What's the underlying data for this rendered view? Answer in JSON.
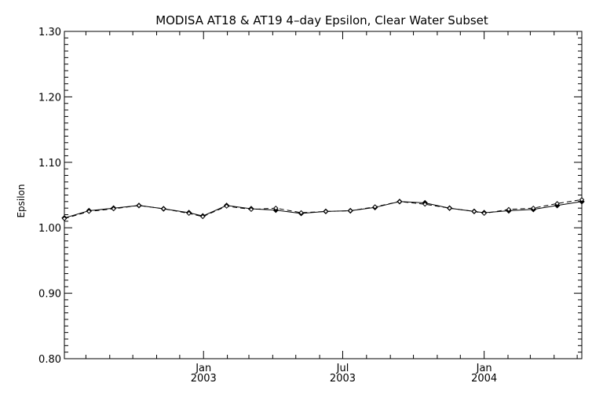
{
  "chart_data": {
    "type": "line",
    "title": "MODISA AT18 & AT19 4–day Epsilon, Clear Water Subset",
    "xlabel": "",
    "ylabel": "Epsilon",
    "ylim": [
      0.8,
      1.3
    ],
    "xlim": [
      "2002-07-04",
      "2004-05-07"
    ],
    "grid": false,
    "y_ticks": [
      {
        "value": 0.8,
        "label": "0.80"
      },
      {
        "value": 0.9,
        "label": "0.90"
      },
      {
        "value": 1.0,
        "label": "1.00"
      },
      {
        "value": 1.1,
        "label": "1.10"
      },
      {
        "value": 1.2,
        "label": "1.20"
      },
      {
        "value": 1.3,
        "label": "1.30"
      }
    ],
    "x_ticks": [
      {
        "date": "2003-01-01",
        "label": "Jan",
        "sublabel": "2003"
      },
      {
        "date": "2003-07-01",
        "label": "Jul",
        "sublabel": "2003"
      },
      {
        "date": "2004-01-01",
        "label": "Jan",
        "sublabel": "2004"
      }
    ],
    "series": [
      {
        "style": "solid",
        "marker": "diamond-filled",
        "color": "#000000",
        "points": [
          {
            "x": "2002-07-04",
            "y": 1.015
          },
          {
            "x": "2002-08-05",
            "y": 1.026
          },
          {
            "x": "2002-09-06",
            "y": 1.03
          },
          {
            "x": "2002-10-09",
            "y": 1.034
          },
          {
            "x": "2002-11-10",
            "y": 1.029
          },
          {
            "x": "2002-12-13",
            "y": 1.023
          },
          {
            "x": "2002-12-31",
            "y": 1.018
          },
          {
            "x": "2003-01-31",
            "y": 1.034
          },
          {
            "x": "2003-03-04",
            "y": 1.029
          },
          {
            "x": "2003-04-05",
            "y": 1.027
          },
          {
            "x": "2003-05-08",
            "y": 1.022
          },
          {
            "x": "2003-06-09",
            "y": 1.025
          },
          {
            "x": "2003-07-11",
            "y": 1.026
          },
          {
            "x": "2003-08-12",
            "y": 1.031
          },
          {
            "x": "2003-09-13",
            "y": 1.04
          },
          {
            "x": "2003-10-16",
            "y": 1.038
          },
          {
            "x": "2003-11-17",
            "y": 1.03
          },
          {
            "x": "2003-12-19",
            "y": 1.025
          },
          {
            "x": "2004-01-01",
            "y": 1.023
          },
          {
            "x": "2004-02-02",
            "y": 1.026
          },
          {
            "x": "2004-03-05",
            "y": 1.028
          },
          {
            "x": "2004-04-05",
            "y": 1.034
          },
          {
            "x": "2004-05-07",
            "y": 1.04
          }
        ]
      },
      {
        "style": "dashed",
        "marker": "diamond-open",
        "color": "#000000",
        "points": [
          {
            "x": "2002-07-04",
            "y": 1.014
          },
          {
            "x": "2002-08-05",
            "y": 1.025
          },
          {
            "x": "2002-09-06",
            "y": 1.029
          },
          {
            "x": "2002-10-09",
            "y": 1.034
          },
          {
            "x": "2002-11-10",
            "y": 1.029
          },
          {
            "x": "2002-12-13",
            "y": 1.022
          },
          {
            "x": "2002-12-31",
            "y": 1.017
          },
          {
            "x": "2003-01-31",
            "y": 1.033
          },
          {
            "x": "2003-03-04",
            "y": 1.028
          },
          {
            "x": "2003-04-05",
            "y": 1.03
          },
          {
            "x": "2003-05-08",
            "y": 1.023
          },
          {
            "x": "2003-06-09",
            "y": 1.025
          },
          {
            "x": "2003-07-11",
            "y": 1.026
          },
          {
            "x": "2003-08-12",
            "y": 1.032
          },
          {
            "x": "2003-09-13",
            "y": 1.04
          },
          {
            "x": "2003-10-16",
            "y": 1.036
          },
          {
            "x": "2003-11-17",
            "y": 1.03
          },
          {
            "x": "2003-12-19",
            "y": 1.025
          },
          {
            "x": "2004-01-01",
            "y": 1.022
          },
          {
            "x": "2004-02-02",
            "y": 1.028
          },
          {
            "x": "2004-03-05",
            "y": 1.03
          },
          {
            "x": "2004-04-05",
            "y": 1.037
          },
          {
            "x": "2004-05-07",
            "y": 1.043
          }
        ]
      }
    ]
  }
}
